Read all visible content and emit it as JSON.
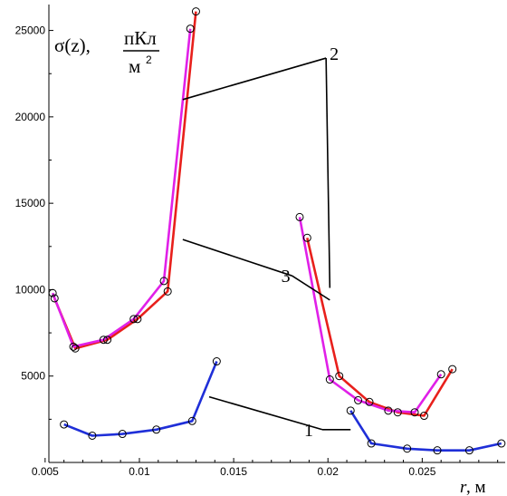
{
  "chart_data": {
    "type": "line",
    "ylabel": {
      "lhs": "σ(z),",
      "numerator": "пКл",
      "denominator": "м",
      "exponent": "2"
    },
    "xlabel": {
      "var": "r",
      "unit": ", м"
    },
    "xlim": [
      0.0052,
      0.0294
    ],
    "ylim": [
      0,
      26500
    ],
    "x_ticks": [
      0.005,
      0.01,
      0.015,
      0.02,
      0.025
    ],
    "x_tick_labels": [
      "0.005",
      "0.01",
      "0.015",
      "0.02",
      "0.025"
    ],
    "y_ticks": [
      5000,
      10000,
      15000,
      20000,
      25000
    ],
    "y_tick_labels": [
      "5000",
      "10000",
      "15000",
      "20000",
      "25000"
    ],
    "series": [
      {
        "label": "1",
        "color": "#1f2fd8",
        "segments": [
          [
            [
              0.006,
              2200
            ],
            [
              0.0075,
              1550
            ],
            [
              0.0091,
              1650
            ],
            [
              0.0109,
              1900
            ],
            [
              0.0128,
              2400
            ],
            [
              0.0141,
              5850
            ]
          ],
          [
            [
              0.0212,
              3000
            ],
            [
              0.0223,
              1100
            ],
            [
              0.0242,
              800
            ],
            [
              0.0258,
              700
            ],
            [
              0.0275,
              700
            ],
            [
              0.0292,
              1100
            ]
          ]
        ]
      },
      {
        "label": "2",
        "color": "#e8201c",
        "segments": [
          [
            [
              0.0055,
              9500
            ],
            [
              0.0066,
              6600
            ],
            [
              0.0083,
              7100
            ],
            [
              0.0099,
              8300
            ],
            [
              0.0115,
              9900
            ],
            [
              0.013,
              26100
            ]
          ],
          [
            [
              0.0189,
              13000
            ],
            [
              0.0206,
              5000
            ],
            [
              0.0222,
              3500
            ],
            [
              0.0237,
              2900
            ],
            [
              0.0251,
              2700
            ],
            [
              0.0266,
              5400
            ]
          ]
        ]
      },
      {
        "label": "3",
        "color": "#e020e8",
        "segments": [
          [
            [
              0.0054,
              9800
            ],
            [
              0.0065,
              6700
            ],
            [
              0.0081,
              7100
            ],
            [
              0.0097,
              8300
            ],
            [
              0.0113,
              10500
            ],
            [
              0.0127,
              25100
            ]
          ],
          [
            [
              0.0185,
              14200
            ],
            [
              0.0201,
              4800
            ],
            [
              0.0216,
              3600
            ],
            [
              0.0232,
              3000
            ],
            [
              0.0246,
              2900
            ],
            [
              0.026,
              5100
            ]
          ]
        ]
      }
    ],
    "annotations": [
      {
        "text": "2",
        "anchor": [
          0.0199,
          23400
        ],
        "targets": [
          [
            0.0123,
            21000
          ],
          [
            0.0201,
            10100
          ]
        ]
      },
      {
        "text": "3",
        "anchor": [
          0.0181,
          10800
        ],
        "targets": [
          [
            0.0123,
            12900
          ],
          [
            0.0201,
            9400
          ]
        ]
      },
      {
        "text": "1",
        "anchor": [
          0.0197,
          1900
        ],
        "targets": [
          [
            0.0137,
            3800
          ],
          [
            0.0212,
            1900
          ]
        ]
      }
    ]
  }
}
